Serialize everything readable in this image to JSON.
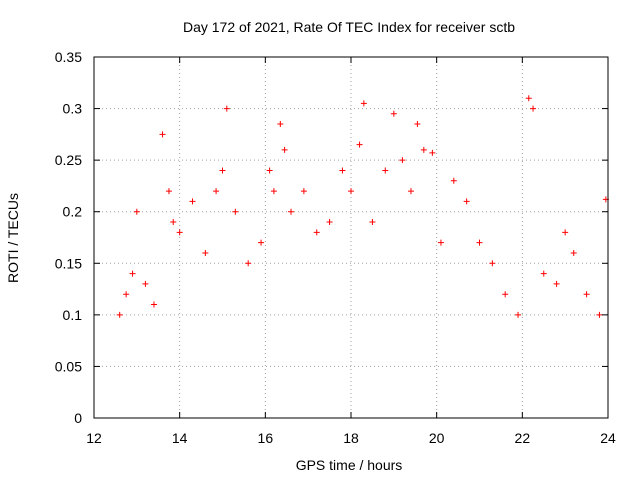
{
  "chart_data": {
    "type": "scatter",
    "title": "Day 172 of 2021, Rate Of TEC Index for receiver sctb",
    "xlabel": "GPS time / hours",
    "ylabel": "ROTI / TECUs",
    "xlim": [
      12,
      24
    ],
    "ylim": [
      0,
      0.35
    ],
    "xticks": [
      12,
      14,
      16,
      18,
      20,
      22,
      24
    ],
    "xtick_labels": [
      "12",
      "14",
      "16",
      "18",
      "20",
      "22",
      "24"
    ],
    "yticks": [
      0,
      0.05,
      0.1,
      0.15,
      0.2,
      0.25,
      0.3,
      0.35
    ],
    "ytick_labels": [
      "0",
      "0.05",
      "0.1",
      "0.15",
      "0.2",
      "0.25",
      "0.3",
      "0.35"
    ],
    "grid": true,
    "marker": "plus",
    "color": "#ff0000",
    "series": [
      {
        "name": "ROTI",
        "x": [
          12.6,
          12.75,
          12.9,
          13.0,
          13.2,
          13.4,
          13.6,
          13.75,
          13.85,
          14.0,
          14.3,
          14.6,
          14.85,
          15.0,
          15.1,
          15.3,
          15.6,
          15.9,
          16.1,
          16.2,
          16.35,
          16.45,
          16.6,
          16.9,
          17.2,
          17.5,
          17.8,
          18.0,
          18.2,
          18.3,
          18.5,
          18.8,
          19.0,
          19.2,
          19.4,
          19.55,
          19.7,
          19.9,
          20.1,
          20.4,
          20.7,
          21.0,
          21.3,
          21.6,
          21.9,
          22.15,
          22.25,
          22.5,
          22.8,
          23.0,
          23.2,
          23.5,
          23.8,
          23.95
        ],
        "y": [
          0.1,
          0.12,
          0.14,
          0.2,
          0.13,
          0.11,
          0.275,
          0.22,
          0.19,
          0.18,
          0.21,
          0.16,
          0.22,
          0.24,
          0.3,
          0.2,
          0.15,
          0.17,
          0.24,
          0.22,
          0.285,
          0.26,
          0.2,
          0.22,
          0.18,
          0.19,
          0.24,
          0.22,
          0.265,
          0.305,
          0.19,
          0.24,
          0.295,
          0.25,
          0.22,
          0.285,
          0.26,
          0.257,
          0.17,
          0.23,
          0.21,
          0.17,
          0.15,
          0.12,
          0.1,
          0.31,
          0.3,
          0.14,
          0.13,
          0.18,
          0.16,
          0.12,
          0.1,
          0.212
        ]
      }
    ]
  }
}
